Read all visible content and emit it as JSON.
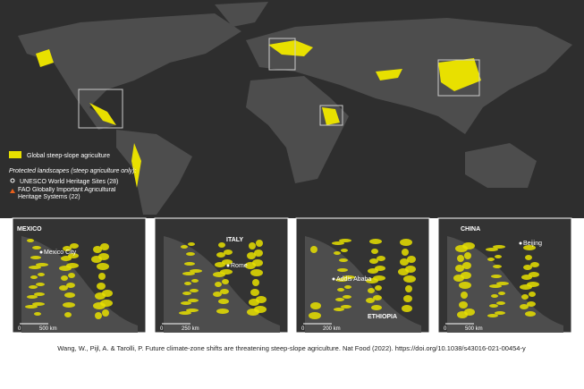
{
  "legend": {
    "agriculture": "Global steep-slope agriculture",
    "protected_title": "Protected landscapes (steep agriculture only):",
    "unesco": "UNESCO World Heritage Sites (28)",
    "fao": "FAO Globally Important Agricultural Heritage Systems (22)"
  },
  "insets": [
    {
      "region": "MEXICO",
      "city": "Mexico City",
      "scale_start": "0",
      "scale_end": "500 km"
    },
    {
      "region": "ITALY",
      "city": "Rome",
      "scale_start": "0",
      "scale_end": "250 km"
    },
    {
      "region": "ETHIOPIA",
      "city": "Addis Ababa",
      "scale_start": "0",
      "scale_end": "200 km"
    },
    {
      "region": "CHINA",
      "city": "Beijing",
      "scale_start": "0",
      "scale_end": "500 km"
    }
  ],
  "citation": "Wang, W., Pijl, A. & Tarolli, P. Future climate-zone shifts are threatening steep-slope agriculture. Nat Food (2022). https://doi.org/10.1038/s43016-021-00454-y"
}
